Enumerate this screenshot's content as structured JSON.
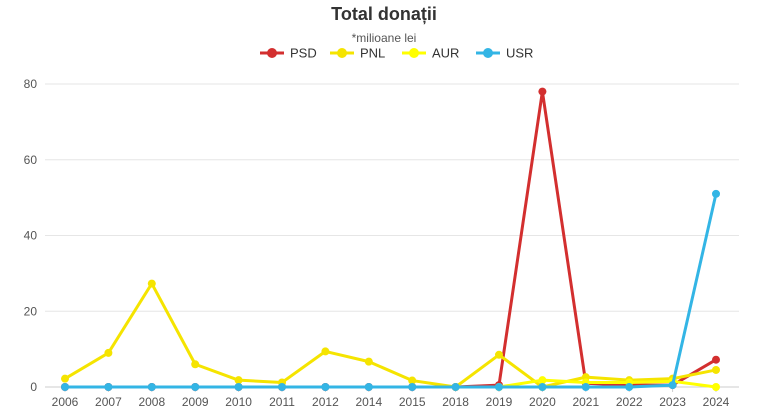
{
  "chart_data": {
    "type": "line",
    "title": "Total donații",
    "subtitle": "*milioane lei",
    "xlabel": "",
    "ylabel": "",
    "categories": [
      "2006",
      "2007",
      "2008",
      "2009",
      "2010",
      "2011",
      "2012",
      "2014",
      "2015",
      "2018",
      "2019",
      "2020",
      "2021",
      "2022",
      "2023",
      "2024"
    ],
    "ylim": [
      0,
      85
    ],
    "yticks": [
      0,
      20,
      40,
      60,
      80
    ],
    "grid": true,
    "legend_position": "top-center",
    "series": [
      {
        "name": "PSD",
        "color": "#d32f2f",
        "values": [
          0,
          0,
          0,
          0,
          0,
          0,
          0,
          0,
          0,
          0,
          0.5,
          78,
          1,
          0.5,
          0.5,
          7.2
        ]
      },
      {
        "name": "PNL",
        "color": "#f5e400",
        "values": [
          2.2,
          9,
          27.3,
          6,
          1.8,
          1.2,
          9.4,
          6.7,
          1.7,
          0,
          8.5,
          0,
          2.6,
          1.8,
          2.2,
          4.5
        ]
      },
      {
        "name": "AUR",
        "color": "#ffff00",
        "values": [
          null,
          null,
          null,
          null,
          null,
          null,
          null,
          null,
          null,
          null,
          0,
          1.8,
          1.2,
          1.2,
          1.5,
          0
        ]
      },
      {
        "name": "USR",
        "color": "#33b5e5",
        "values": [
          0,
          0,
          0,
          0,
          0,
          0,
          0,
          0,
          0,
          0,
          0,
          0,
          0,
          0,
          0.5,
          51
        ]
      }
    ]
  }
}
